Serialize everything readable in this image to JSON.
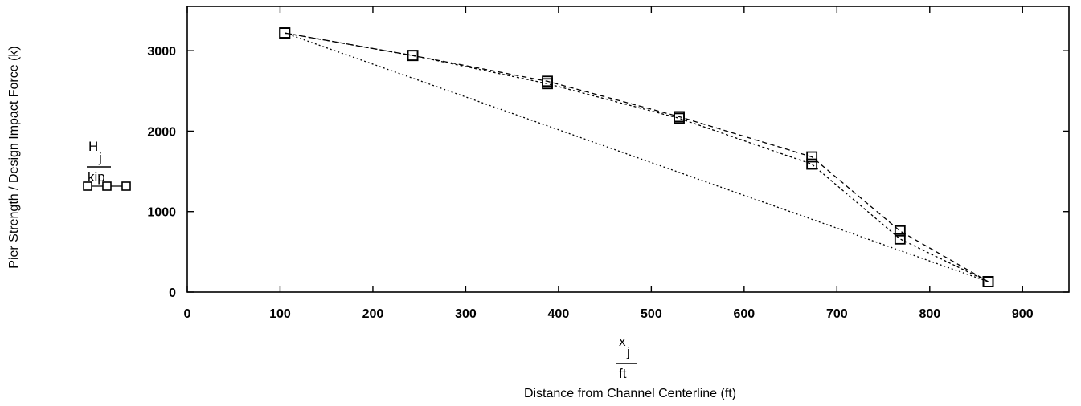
{
  "chart_data": {
    "type": "line",
    "xlabel_var": "x",
    "xlabel_sub": "j",
    "xlabel_unit": "ft",
    "xlabel_desc": "Distance from Channel Centerline (ft)",
    "ylabel_var": "H",
    "ylabel_sub": "j",
    "ylabel_unit": "kip",
    "ylabel_desc": "Pier Strength / Design Impact Force (k)",
    "xlim": [
      0,
      950
    ],
    "ylim": [
      0,
      3550
    ],
    "xticks": [
      0,
      100,
      200,
      300,
      400,
      500,
      600,
      700,
      800,
      900
    ],
    "yticks": [
      0,
      1000,
      2000,
      3000
    ],
    "grid": false,
    "series": [
      {
        "dash": "6,4",
        "x": [
          105,
          243,
          388,
          530,
          673,
          768,
          863
        ],
        "y": [
          3220,
          2940,
          2620,
          2180,
          1680,
          760,
          130
        ]
      },
      {
        "dash": "3,3",
        "x": [
          105,
          243,
          388,
          530,
          673,
          768,
          863
        ],
        "y": [
          3220,
          2940,
          2590,
          2160,
          1590,
          660,
          130
        ]
      },
      {
        "dash": "2,3",
        "x": [
          105,
          863
        ],
        "y": [
          3220,
          130
        ]
      }
    ]
  }
}
